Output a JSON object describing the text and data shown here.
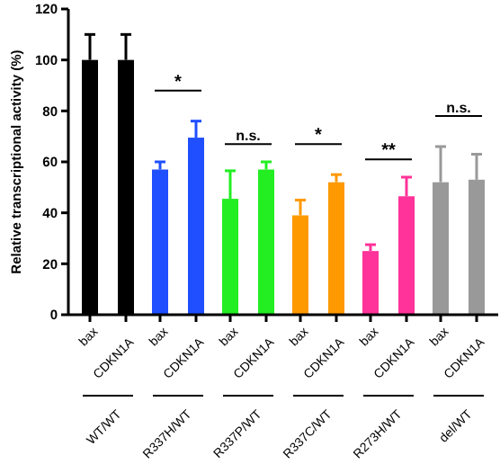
{
  "chart_data": {
    "type": "bar",
    "ylabel": "Relative transcriptional activity (%)",
    "categories": [
      "bax",
      "CDKN1A",
      "bax",
      "CDKN1A",
      "bax",
      "CDKN1A",
      "bax",
      "CDKN1A",
      "bax",
      "CDKN1A",
      "bax",
      "CDKN1A"
    ],
    "values": [
      100,
      100,
      57,
      69.5,
      45.5,
      57,
      39,
      52,
      25,
      46.5,
      52,
      53
    ],
    "errors": [
      10,
      10,
      3,
      6.5,
      11,
      3,
      6,
      3,
      2.5,
      7.5,
      14,
      10
    ],
    "colors": [
      "#000000",
      "#000000",
      "#1f4fff",
      "#1f4fff",
      "#22ee22",
      "#22ee22",
      "#ff9900",
      "#ff9900",
      "#ff3399",
      "#ff3399",
      "#999999",
      "#999999"
    ],
    "ylim": [
      0,
      120
    ],
    "yticks": [
      0,
      20,
      40,
      60,
      80,
      100,
      120
    ],
    "annotations": [
      "WT/WT",
      "R337H/WT",
      "R337P/WT",
      "R337C/WT",
      "R273H/WT",
      "del/WT",
      "*",
      "n.s.",
      "*",
      "**",
      "n.s."
    ]
  }
}
